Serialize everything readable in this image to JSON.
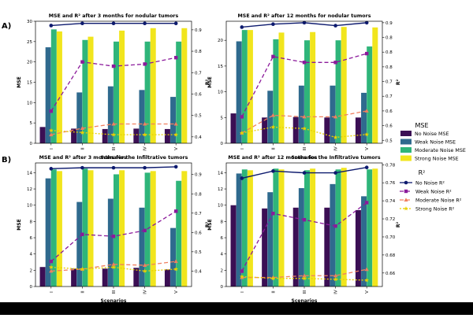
{
  "figure": {
    "panel_labels": [
      "A)",
      "B)"
    ],
    "legend": {
      "mse_title": "MSE",
      "r2_title": "R²",
      "mse_entries": [
        "No Noise MSE",
        "Weak Noise MSE",
        "Moderate Noise MSE",
        "Strong Noise MSE"
      ],
      "r2_entries": [
        "No Noise R²",
        "Weak Noise R²",
        "Moderate Noise R²",
        "Strong Noise R²"
      ]
    },
    "colors": {
      "no_noise": "#3b0f54",
      "weak_noise": "#2f6a8e",
      "moderate_noise": "#2fb57a",
      "strong_noise": "#f1e51d",
      "r2_no": "#0d1a6e",
      "r2_weak": "#8b1a9b",
      "r2_moderate": "#f08060",
      "r2_strong": "#e8d000"
    }
  },
  "chart_data": [
    {
      "type": "bar",
      "title": "MSE and R² after 3 months for nodular tumors",
      "xlabel": "Scenarios",
      "ylabel": "MSE",
      "y2label": "R²",
      "categories": [
        "I",
        "II",
        "III",
        "IV",
        "V"
      ],
      "ylim": [
        0,
        30
      ],
      "yticks": [
        0,
        5,
        10,
        15,
        20,
        25,
        30
      ],
      "y2lim": [
        0.37,
        0.94
      ],
      "y2ticks": [
        0.4,
        0.5,
        0.6,
        0.7,
        0.8,
        0.9
      ],
      "series": [
        {
          "name": "No Noise MSE",
          "values": [
            4.0,
            3.6,
            3.5,
            3.6,
            3.5
          ]
        },
        {
          "name": "Weak Noise MSE",
          "values": [
            23.6,
            12.5,
            14.0,
            13.1,
            11.4
          ]
        },
        {
          "name": "Moderate Noise MSE",
          "values": [
            28.0,
            25.4,
            25.0,
            25.0,
            25.0
          ]
        },
        {
          "name": "Strong Noise MSE",
          "values": [
            27.5,
            26.2,
            27.7,
            28.3,
            28.3
          ]
        }
      ],
      "r2_series": [
        {
          "name": "No Noise R²",
          "values": [
            0.92,
            0.93,
            0.93,
            0.93,
            0.93
          ]
        },
        {
          "name": "Weak Noise R²",
          "values": [
            0.52,
            0.75,
            0.73,
            0.74,
            0.77
          ]
        },
        {
          "name": "Moderate Noise R²",
          "values": [
            0.41,
            0.44,
            0.46,
            0.46,
            0.46
          ]
        },
        {
          "name": "Strong Noise R²",
          "values": [
            0.43,
            0.42,
            0.41,
            0.41,
            0.41
          ]
        }
      ]
    },
    {
      "type": "bar",
      "title": "MSE and R² after 12 months for nodular tumors",
      "xlabel": "Scenarios",
      "ylabel": "MSE",
      "y2label": "R²",
      "categories": [
        "I",
        "II",
        "III",
        "IV",
        "V"
      ],
      "ylim": [
        0,
        23.7
      ],
      "yticks": [
        0,
        5,
        10,
        15,
        20
      ],
      "y2lim": [
        0.49,
        0.905
      ],
      "y2ticks": [
        0.5,
        0.55,
        0.6,
        0.65,
        0.7,
        0.75,
        0.8,
        0.85,
        0.9
      ],
      "series": [
        {
          "name": "No Noise MSE",
          "values": [
            5.8,
            5.0,
            5.1,
            5.0,
            5.0
          ]
        },
        {
          "name": "Weak Noise MSE",
          "values": [
            19.8,
            10.2,
            11.2,
            11.2,
            9.8
          ]
        },
        {
          "name": "Moderate Noise MSE",
          "values": [
            22.0,
            20.2,
            20.0,
            20.0,
            18.8
          ]
        },
        {
          "name": "Strong Noise MSE",
          "values": [
            22.0,
            21.5,
            21.6,
            22.6,
            22.5
          ]
        }
      ],
      "r2_series": [
        {
          "name": "No Noise R²",
          "values": [
            0.885,
            0.895,
            0.9,
            0.89,
            0.9
          ]
        },
        {
          "name": "Weak Noise R²",
          "values": [
            0.58,
            0.785,
            0.765,
            0.765,
            0.795
          ]
        },
        {
          "name": "Moderate Noise R²",
          "values": [
            0.525,
            0.585,
            0.58,
            0.58,
            0.6
          ]
        },
        {
          "name": "Strong Noise R²",
          "values": [
            0.525,
            0.545,
            0.54,
            0.51,
            0.52
          ]
        }
      ]
    },
    {
      "type": "bar",
      "title": "MSE and R² after 3 months for the Infiltrative tumors",
      "xlabel": "Scenarios",
      "ylabel": "MSE",
      "y2label": "R²",
      "categories": [
        "I",
        "II",
        "III",
        "IV",
        "V"
      ],
      "ylim": [
        0,
        15.2
      ],
      "yticks": [
        0,
        2,
        4,
        6,
        8,
        10,
        12,
        14
      ],
      "y2lim": [
        0.32,
        0.96
      ],
      "y2ticks": [
        0.4,
        0.5,
        0.6,
        0.7,
        0.8,
        0.9
      ],
      "series": [
        {
          "name": "No Noise MSE",
          "values": [
            2.4,
            2.2,
            2.2,
            2.3,
            2.1
          ]
        },
        {
          "name": "Weak Noise MSE",
          "values": [
            13.3,
            10.4,
            10.8,
            9.7,
            7.2
          ]
        },
        {
          "name": "Moderate Noise MSE",
          "values": [
            14.4,
            14.5,
            13.8,
            14.0,
            13.0
          ]
        },
        {
          "name": "Strong Noise MSE",
          "values": [
            14.2,
            14.3,
            14.3,
            14.2,
            14.2
          ]
        }
      ],
      "r2_series": [
        {
          "name": "No Noise R²",
          "values": [
            0.93,
            0.935,
            0.935,
            0.935,
            0.94
          ]
        },
        {
          "name": "Weak Noise R²",
          "values": [
            0.45,
            0.59,
            0.58,
            0.61,
            0.71
          ]
        },
        {
          "name": "Moderate Noise R²",
          "values": [
            0.4,
            0.41,
            0.435,
            0.43,
            0.45
          ]
        },
        {
          "name": "Strong Noise R²",
          "values": [
            0.42,
            0.41,
            0.42,
            0.4,
            0.41
          ]
        }
      ]
    },
    {
      "type": "bar",
      "title": "MSE and R² after 12 months for the Infiltrative tumors",
      "xlabel": "Scenarios",
      "ylabel": "MSE",
      "y2label": "R²",
      "categories": [
        "I",
        "II",
        "III",
        "IV",
        "V"
      ],
      "ylim": [
        0,
        15.2
      ],
      "yticks": [
        0,
        2,
        4,
        6,
        8,
        10,
        12,
        14
      ],
      "y2lim": [
        0.645,
        0.782
      ],
      "y2ticks": [
        0.66,
        0.68,
        0.7,
        0.72,
        0.74,
        0.76,
        0.78
      ],
      "series": [
        {
          "name": "No Noise MSE",
          "values": [
            10.0,
            9.6,
            9.7,
            9.7,
            9.4
          ]
        },
        {
          "name": "Weak Noise MSE",
          "values": [
            13.9,
            11.6,
            12.1,
            12.6,
            11.1
          ]
        },
        {
          "name": "Moderate Noise MSE",
          "values": [
            14.4,
            14.5,
            14.3,
            14.4,
            14.4
          ]
        },
        {
          "name": "Strong Noise MSE",
          "values": [
            14.3,
            14.4,
            14.5,
            14.6,
            14.5
          ]
        }
      ],
      "r2_series": [
        {
          "name": "No Noise R²",
          "values": [
            0.765,
            0.773,
            0.771,
            0.771,
            0.777
          ]
        },
        {
          "name": "Weak Noise R²",
          "values": [
            0.662,
            0.726,
            0.719,
            0.712,
            0.738
          ]
        },
        {
          "name": "Moderate Noise R²",
          "values": [
            0.655,
            0.655,
            0.657,
            0.657,
            0.664
          ]
        },
        {
          "name": "Strong Noise R²",
          "values": [
            0.656,
            0.654,
            0.654,
            0.653,
            0.652
          ]
        }
      ]
    }
  ]
}
